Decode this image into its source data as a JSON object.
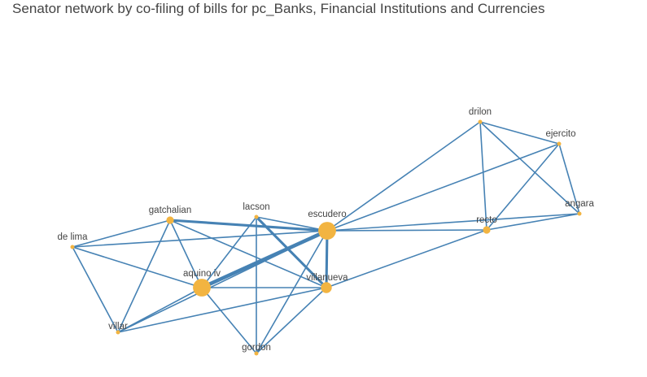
{
  "title": "Senator network by co-filing of bills for pc_Banks, Financial Institutions and Currencies",
  "colors": {
    "edge": "#4682b4",
    "node": "#f2b441",
    "label": "#444444",
    "title": "#444444"
  },
  "nodes": [
    {
      "id": "drilon",
      "label": "drilon",
      "weight": 1
    },
    {
      "id": "ejercito",
      "label": "ejercito",
      "weight": 1
    },
    {
      "id": "angara",
      "label": "angara",
      "weight": 1
    },
    {
      "id": "recto",
      "label": "recto",
      "weight": 2
    },
    {
      "id": "escudero",
      "label": "escudero",
      "weight": 5
    },
    {
      "id": "lacson",
      "label": "lacson",
      "weight": 1
    },
    {
      "id": "gatchalian",
      "label": "gatchalian",
      "weight": 2
    },
    {
      "id": "de_lima",
      "label": "de lima",
      "weight": 1
    },
    {
      "id": "aquino_iv",
      "label": "aquino iv",
      "weight": 5
    },
    {
      "id": "villanueva",
      "label": "villanueva",
      "weight": 3
    },
    {
      "id": "villar",
      "label": "villar",
      "weight": 1
    },
    {
      "id": "gordon",
      "label": "gordon",
      "weight": 1
    }
  ],
  "edges": [
    {
      "source": "drilon",
      "target": "ejercito",
      "weight": 1
    },
    {
      "source": "drilon",
      "target": "angara",
      "weight": 1
    },
    {
      "source": "drilon",
      "target": "recto",
      "weight": 1
    },
    {
      "source": "drilon",
      "target": "escudero",
      "weight": 1
    },
    {
      "source": "ejercito",
      "target": "angara",
      "weight": 1
    },
    {
      "source": "ejercito",
      "target": "recto",
      "weight": 1
    },
    {
      "source": "ejercito",
      "target": "escudero",
      "weight": 1
    },
    {
      "source": "angara",
      "target": "recto",
      "weight": 1
    },
    {
      "source": "angara",
      "target": "escudero",
      "weight": 1
    },
    {
      "source": "recto",
      "target": "escudero",
      "weight": 1
    },
    {
      "source": "recto",
      "target": "villanueva",
      "weight": 1
    },
    {
      "source": "gatchalian",
      "target": "escudero",
      "weight": 2
    },
    {
      "source": "gatchalian",
      "target": "de_lima",
      "weight": 1
    },
    {
      "source": "gatchalian",
      "target": "aquino_iv",
      "weight": 1
    },
    {
      "source": "gatchalian",
      "target": "villanueva",
      "weight": 1
    },
    {
      "source": "gatchalian",
      "target": "villar",
      "weight": 1
    },
    {
      "source": "lacson",
      "target": "escudero",
      "weight": 1
    },
    {
      "source": "lacson",
      "target": "villanueva",
      "weight": 2
    },
    {
      "source": "lacson",
      "target": "aquino_iv",
      "weight": 1
    },
    {
      "source": "lacson",
      "target": "gordon",
      "weight": 1
    },
    {
      "source": "escudero",
      "target": "aquino_iv",
      "weight": 3
    },
    {
      "source": "escudero",
      "target": "villanueva",
      "weight": 2
    },
    {
      "source": "escudero",
      "target": "villar",
      "weight": 1
    },
    {
      "source": "escudero",
      "target": "gordon",
      "weight": 1
    },
    {
      "source": "de_lima",
      "target": "escudero",
      "weight": 1
    },
    {
      "source": "de_lima",
      "target": "aquino_iv",
      "weight": 1
    },
    {
      "source": "de_lima",
      "target": "villar",
      "weight": 1
    },
    {
      "source": "aquino_iv",
      "target": "villanueva",
      "weight": 1
    },
    {
      "source": "aquino_iv",
      "target": "gordon",
      "weight": 1
    },
    {
      "source": "aquino_iv",
      "target": "villar",
      "weight": 1
    },
    {
      "source": "villanueva",
      "target": "gordon",
      "weight": 1
    },
    {
      "source": "villanueva",
      "target": "villar",
      "weight": 1
    }
  ]
}
